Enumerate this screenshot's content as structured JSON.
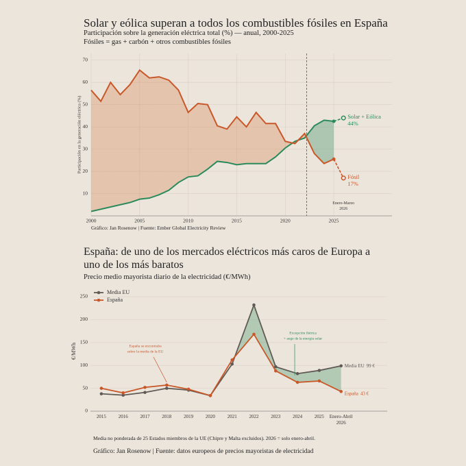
{
  "chart_data": [
    {
      "type": "line",
      "title": "Solar y eólica superan a todos los combustibles fósiles en España",
      "subtitle": "Participación sobre la generación eléctrica total (%) — anual, 2000-2025",
      "subtitle2": "Fósiles = gas + carbón + otros combustibles fósiles",
      "ylabel": "Participación en la generación eléctrica (%)",
      "source": "Gráfico: Jan Rosenow | Fuente: Ember Global Electricity Review",
      "annotation": "Enero-Marzo 2026",
      "x": [
        2000,
        2001,
        2002,
        2003,
        2004,
        2005,
        2006,
        2007,
        2008,
        2009,
        2010,
        2011,
        2012,
        2013,
        2014,
        2015,
        2016,
        2017,
        2018,
        2019,
        2020,
        2021,
        2022,
        2023,
        2024,
        2025,
        2026
      ],
      "series": [
        {
          "name": "Solar + Eólica",
          "color": "#2a8a5a",
          "values": [
            2,
            3,
            4,
            5,
            6,
            7.5,
            8,
            9.5,
            11.5,
            15,
            17.5,
            18,
            21,
            24.5,
            24,
            23,
            23.5,
            23.5,
            23.5,
            26.5,
            30.5,
            33.5,
            35,
            40.5,
            43,
            42.5,
            44
          ],
          "value_labels": [
            null,
            null,
            null,
            null,
            null,
            null,
            null,
            null,
            null,
            null,
            null,
            null,
            null,
            null,
            null,
            null,
            null,
            null,
            null,
            null,
            null,
            null,
            null,
            null,
            null,
            null,
            "44%"
          ]
        },
        {
          "name": "Fósil",
          "color": "#c8582a",
          "values": [
            56.5,
            51.5,
            60,
            54.5,
            59,
            65.5,
            62,
            62.5,
            61,
            56.5,
            46.5,
            50.5,
            50,
            40.5,
            39,
            44.5,
            40,
            46.5,
            41.5,
            41.5,
            33.5,
            32.5,
            37,
            28,
            23.5,
            25.5,
            17
          ],
          "value_labels": [
            null,
            null,
            null,
            null,
            null,
            null,
            null,
            null,
            null,
            null,
            null,
            null,
            null,
            null,
            null,
            null,
            null,
            null,
            null,
            null,
            null,
            null,
            null,
            null,
            null,
            null,
            "17%"
          ]
        }
      ],
      "xlim": [
        2000,
        2031
      ],
      "ylim": [
        0,
        73
      ],
      "xticks": [
        2000,
        2005,
        2010,
        2015,
        2020,
        2025
      ],
      "yticks": [
        10,
        20,
        30,
        40,
        50,
        60,
        70
      ],
      "grid": true,
      "vline": 2022.2,
      "last_segment_dashed": true
    },
    {
      "type": "line",
      "title": "España: de uno de los mercados eléctricos más caros de Europa a uno de los más baratos",
      "subtitle": "Precio medio mayorista diario de la electricidad (€/MWh)",
      "ylabel": "€/MWh",
      "categories": [
        "2015",
        "2016",
        "2017",
        "2018",
        "2019",
        "2020",
        "2021",
        "2022",
        "2023",
        "2024",
        "2025",
        "Enero-Abril 2026"
      ],
      "series": [
        {
          "name": "Media EU",
          "color": "#5f5a55",
          "values": [
            38,
            35,
            41,
            50,
            46,
            34,
            103,
            232,
            97,
            82,
            89,
            99
          ],
          "value_labels": [
            null,
            null,
            null,
            null,
            null,
            null,
            null,
            null,
            null,
            null,
            null,
            "99 €"
          ]
        },
        {
          "name": "España",
          "color": "#c8582a",
          "values": [
            50,
            40,
            52,
            57,
            48,
            34,
            112,
            168,
            88,
            63,
            66,
            43
          ],
          "value_labels": [
            null,
            null,
            null,
            null,
            null,
            null,
            null,
            null,
            null,
            null,
            null,
            "43 €"
          ]
        }
      ],
      "ylim": [
        0,
        262
      ],
      "yticks": [
        0,
        50,
        100,
        150,
        200,
        250
      ],
      "grid": true,
      "legend": "upper left",
      "annotations": [
        {
          "lines": [
            "España se encontraba",
            "sobre la media de la EU"
          ],
          "color": "#c8582a"
        },
        {
          "lines": [
            "Excepción ibérica",
            "+ auge de la energía solar"
          ],
          "color": "#2a8a5a"
        }
      ],
      "note": "Media no ponderada de 25 Estados miembros de la UE (Chipre y Malta excluidos). 2026 = solo enero-abril.",
      "source": "Gráfico: Jan Rosenow | Fuente: datos europeos de precios mayoristas de electricidad"
    }
  ]
}
